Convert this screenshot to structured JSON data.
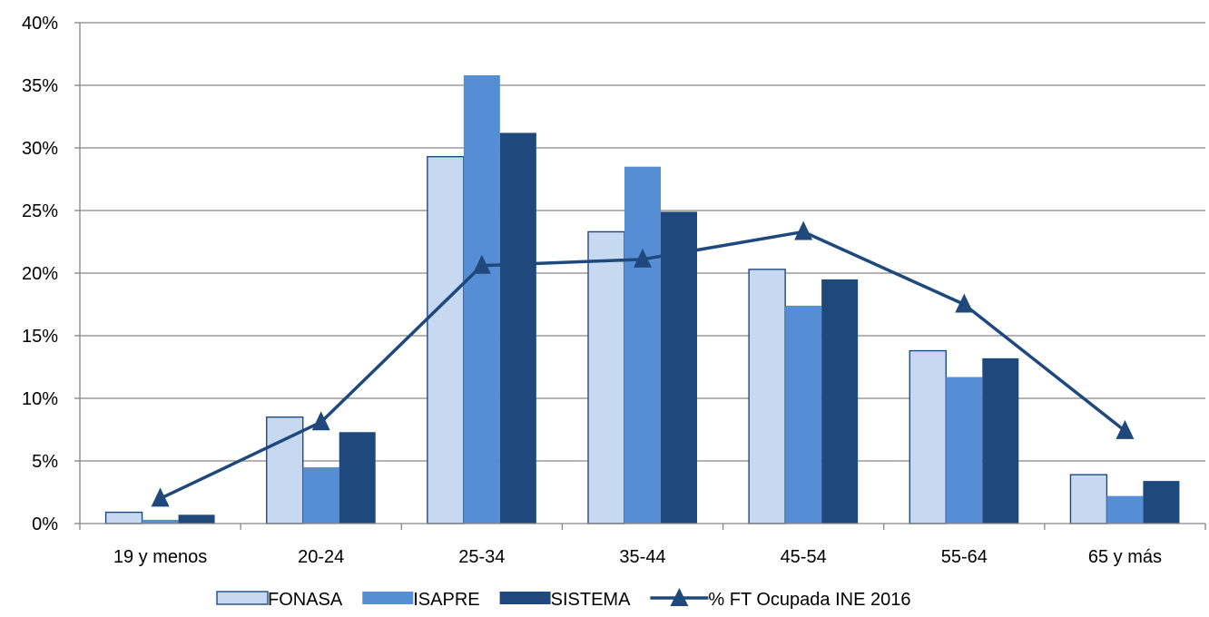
{
  "chart_data": {
    "type": "bar",
    "categories": [
      "19 y menos",
      "20-24",
      "25-34",
      "35-44",
      "45-54",
      "55-64",
      "65 y más"
    ],
    "series": [
      {
        "name": "FONASA",
        "kind": "bar",
        "color": "#c6d9f1",
        "values": [
          0.9,
          8.5,
          29.3,
          23.3,
          20.3,
          13.8,
          3.9
        ]
      },
      {
        "name": "ISAPRE",
        "kind": "bar",
        "color": "#558ed5",
        "values": [
          0.3,
          4.5,
          35.8,
          28.5,
          17.4,
          11.7,
          2.2
        ]
      },
      {
        "name": "SISTEMA",
        "kind": "bar",
        "color": "#1f497d",
        "values": [
          0.7,
          7.3,
          31.2,
          24.9,
          19.5,
          13.2,
          3.4
        ]
      },
      {
        "name": "% FT Ocupada INE 2016",
        "kind": "line",
        "marker": "triangle",
        "color": "#1f497d",
        "values": [
          2.0,
          8.1,
          20.6,
          21.1,
          23.3,
          17.5,
          7.4
        ]
      }
    ],
    "ylim": [
      0,
      40
    ],
    "yticks": [
      0,
      5,
      10,
      15,
      20,
      25,
      30,
      35,
      40
    ],
    "ytick_labels": [
      "0%",
      "5%",
      "10%",
      "15%",
      "20%",
      "25%",
      "30%",
      "35%",
      "40%"
    ],
    "grid": true,
    "legend": "bottom",
    "title": "",
    "xlabel": "",
    "ylabel": ""
  }
}
